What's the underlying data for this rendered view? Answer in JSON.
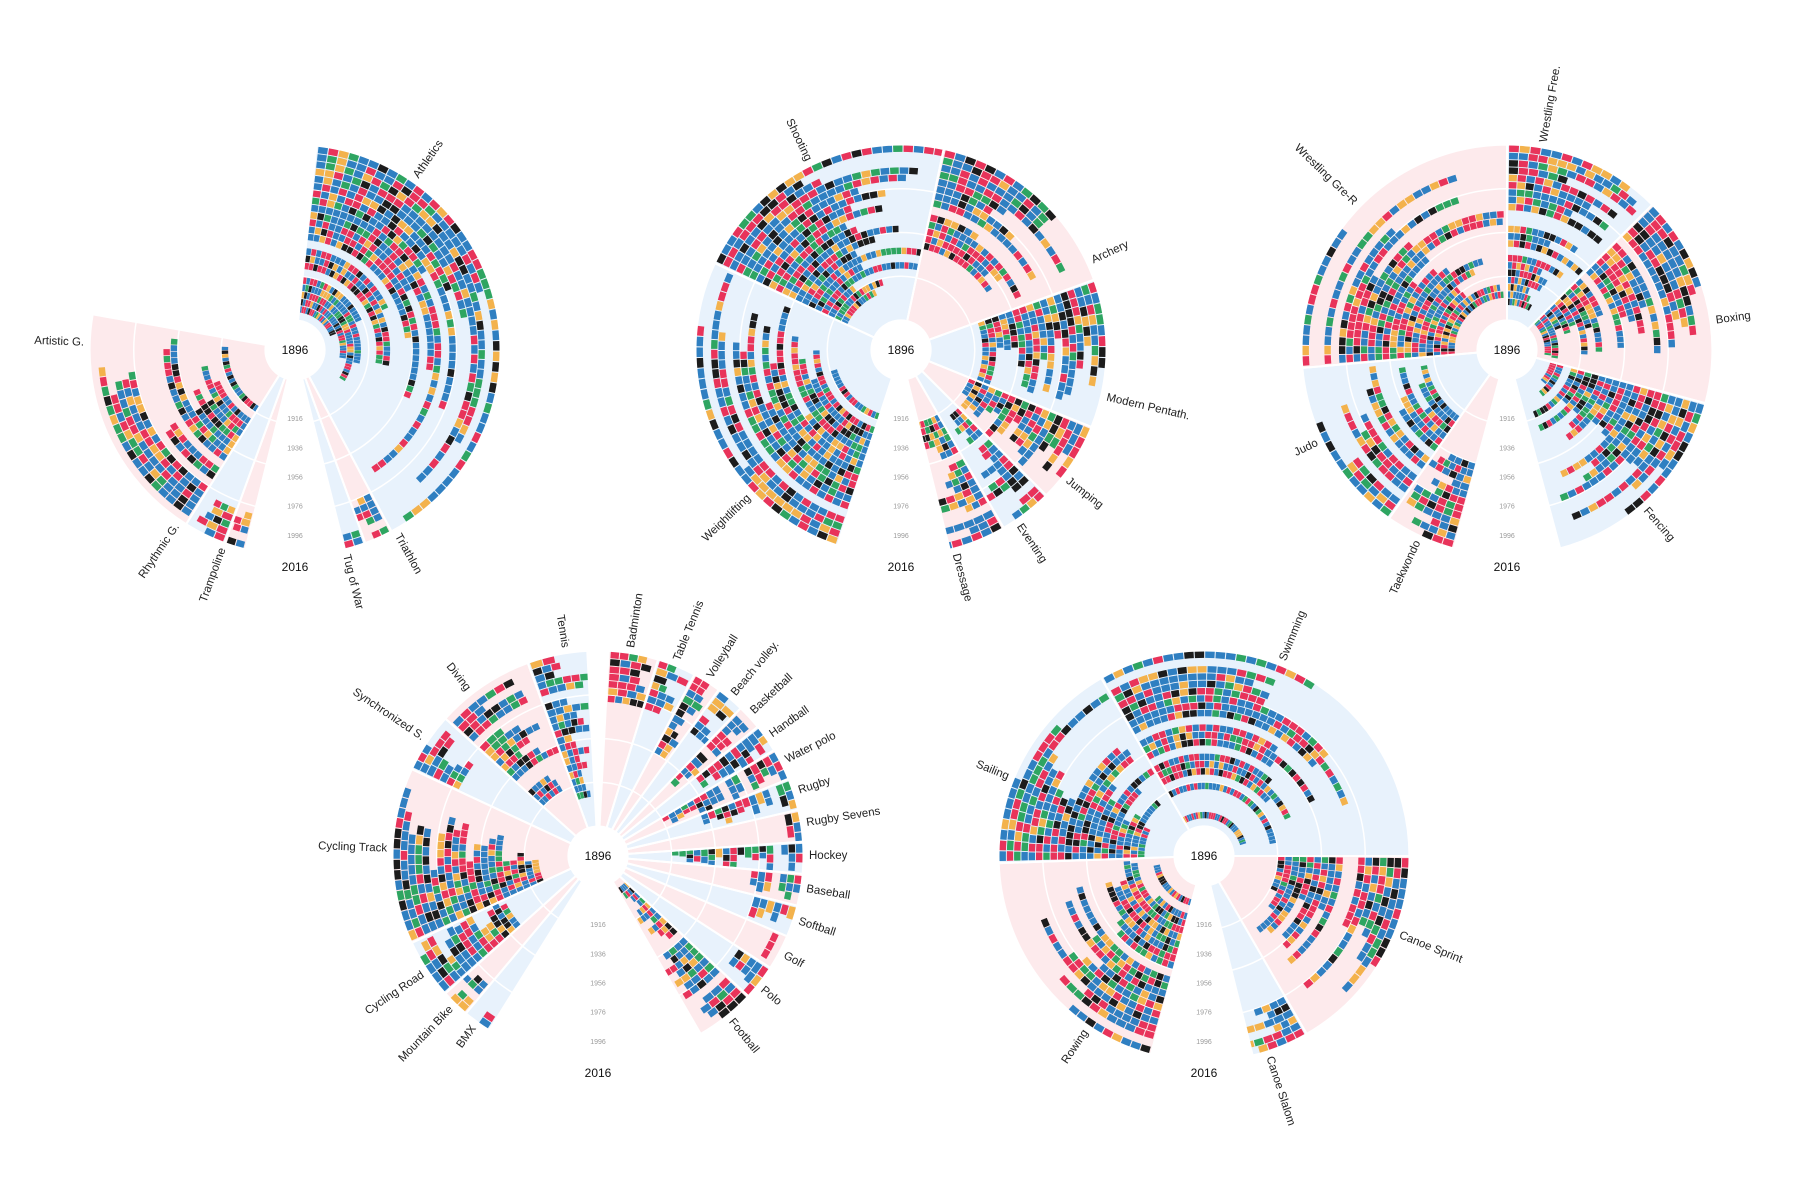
{
  "chart_data": {
    "type": "radial-bar",
    "colors": {
      "blue": "#2f7fc1",
      "red": "#e8335a",
      "gold": "#f3b24c",
      "green": "#2ea561",
      "black": "#1c1c1c",
      "background_even": "#e8f2fc",
      "background_odd": "#fdeaec"
    },
    "year_axis": {
      "start_label": "1896",
      "end_label": "2016",
      "ring_labels": [
        "1916",
        "1936",
        "1956",
        "1976",
        "1996"
      ]
    },
    "charts": [
      {
        "start_label": "1896",
        "end_label": "2016",
        "ring_labels": [
          "1916",
          "1936",
          "1956",
          "1976",
          "1996"
        ],
        "sports": [
          {
            "name": "Athletics",
            "angle_start": 6,
            "angle_end": 152,
            "label_angle": 35,
            "fill": 0.95
          },
          {
            "name": "Triathlon",
            "angle_start": 152,
            "angle_end": 160,
            "label_angle": 151,
            "fill": 0.25
          },
          {
            "name": "Tug of War",
            "angle_start": 160,
            "angle_end": 166,
            "label_angle": 166,
            "fill": 0.1
          },
          {
            "name": "Trampoline",
            "angle_start": 194,
            "angle_end": 200,
            "label_angle": 200,
            "fill": 0.2
          },
          {
            "name": "Rhythmic G.",
            "angle_start": 200,
            "angle_end": 212,
            "label_angle": 214,
            "fill": 0.25
          },
          {
            "name": "Artistic G.",
            "angle_start": 212,
            "angle_end": 280,
            "label_angle": 272,
            "fill": 0.8
          }
        ]
      },
      {
        "start_label": "1896",
        "end_label": "2016",
        "ring_labels": [
          "1916",
          "1936",
          "1956",
          "1976",
          "1996"
        ],
        "sports": [
          {
            "name": "Shooting",
            "angle_start": 295,
            "angle_end": 12,
            "label_angle": 334,
            "fill": 0.85
          },
          {
            "name": "Archery",
            "angle_start": 12,
            "angle_end": 70,
            "label_angle": 65,
            "fill": 0.6
          },
          {
            "name": "Modern Pentath.",
            "angle_start": 70,
            "angle_end": 112,
            "label_angle": 103,
            "fill": 0.7
          },
          {
            "name": "Jumping",
            "angle_start": 112,
            "angle_end": 135,
            "label_angle": 128,
            "fill": 0.75
          },
          {
            "name": "Eventing",
            "angle_start": 135,
            "angle_end": 150,
            "label_angle": 146,
            "fill": 0.75
          },
          {
            "name": "Dressage",
            "angle_start": 150,
            "angle_end": 168,
            "label_angle": 165,
            "fill": 0.75
          },
          {
            "name": "Weightlifting",
            "angle_start": 198,
            "angle_end": 295,
            "label_angle": 226,
            "fill": 0.8
          }
        ]
      },
      {
        "start_label": "1896",
        "end_label": "2016",
        "ring_labels": [
          "1916",
          "1936",
          "1956",
          "1976",
          "1996"
        ],
        "sports": [
          {
            "name": "Wrestling Free.",
            "angle_start": 0,
            "angle_end": 45,
            "label_angle": 10,
            "fill": 0.9
          },
          {
            "name": "Boxing",
            "angle_start": 45,
            "angle_end": 105,
            "label_angle": 82,
            "fill": 0.95
          },
          {
            "name": "Fencing",
            "angle_start": 105,
            "angle_end": 165,
            "label_angle": 139,
            "fill": 0.9
          },
          {
            "name": "Taekwondo",
            "angle_start": 195,
            "angle_end": 215,
            "label_angle": 205,
            "fill": 0.5
          },
          {
            "name": "Judo",
            "angle_start": 215,
            "angle_end": 265,
            "label_angle": 244,
            "fill": 0.7
          },
          {
            "name": "Wrestling Gre-R",
            "angle_start": 265,
            "angle_end": 360,
            "label_angle": 314,
            "fill": 0.9
          }
        ]
      },
      {
        "start_label": "1896",
        "end_label": "2016",
        "ring_labels": [
          "1916",
          "1936",
          "1956",
          "1976",
          "1996"
        ],
        "sports": [
          {
            "name": "Tennis",
            "angle_start": 340,
            "angle_end": 357,
            "label_angle": 351,
            "fill": 0.85
          },
          {
            "name": "Badminton",
            "angle_start": 3,
            "angle_end": 17,
            "label_angle": 9,
            "fill": 0.3
          },
          {
            "name": "Table Tennis",
            "angle_start": 17,
            "angle_end": 28,
            "label_angle": 22,
            "fill": 0.3
          },
          {
            "name": "Volleyball",
            "angle_start": 28,
            "angle_end": 36,
            "label_angle": 32,
            "fill": 0.5
          },
          {
            "name": "Beach volley.",
            "angle_start": 36,
            "angle_end": 44,
            "label_angle": 40,
            "fill": 0.3
          },
          {
            "name": "Basketball",
            "angle_start": 44,
            "angle_end": 51,
            "label_angle": 47,
            "fill": 0.6
          },
          {
            "name": "Handball",
            "angle_start": 51,
            "angle_end": 59,
            "label_angle": 55,
            "fill": 0.5
          },
          {
            "name": "Water polo",
            "angle_start": 59,
            "angle_end": 68,
            "label_angle": 63,
            "fill": 0.75
          },
          {
            "name": "Rugby",
            "angle_start": 68,
            "angle_end": 77,
            "label_angle": 72,
            "fill": 0.55
          },
          {
            "name": "Rugby Sevens",
            "angle_start": 77,
            "angle_end": 86,
            "label_angle": 81,
            "fill": 0.1
          },
          {
            "name": "Hockey",
            "angle_start": 86,
            "angle_end": 95,
            "label_angle": 90,
            "fill": 0.75
          },
          {
            "name": "Baseball",
            "angle_start": 95,
            "angle_end": 104,
            "label_angle": 99,
            "fill": 0.3
          },
          {
            "name": "Softball",
            "angle_start": 104,
            "angle_end": 113,
            "label_angle": 108,
            "fill": 0.25
          },
          {
            "name": "Golf",
            "angle_start": 113,
            "angle_end": 123,
            "label_angle": 118,
            "fill": 0.15
          },
          {
            "name": "Polo",
            "angle_start": 123,
            "angle_end": 133,
            "label_angle": 129,
            "fill": 0.2
          },
          {
            "name": "Football",
            "angle_start": 133,
            "angle_end": 150,
            "label_angle": 141,
            "fill": 0.95
          },
          {
            "name": "BMX",
            "angle_start": 212,
            "angle_end": 220,
            "label_angle": 216,
            "fill": 0.1
          },
          {
            "name": "Mountain Bike",
            "angle_start": 220,
            "angle_end": 228,
            "label_angle": 224,
            "fill": 0.2
          },
          {
            "name": "Cycling Road",
            "angle_start": 228,
            "angle_end": 245,
            "label_angle": 236,
            "fill": 0.6
          },
          {
            "name": "Cycling Track",
            "angle_start": 245,
            "angle_end": 295,
            "label_angle": 272,
            "fill": 0.85
          },
          {
            "name": "Synchronized S.",
            "angle_start": 295,
            "angle_end": 312,
            "label_angle": 304,
            "fill": 0.3
          },
          {
            "name": "Diving",
            "angle_start": 312,
            "angle_end": 340,
            "label_angle": 322,
            "fill": 0.8
          }
        ]
      },
      {
        "start_label": "1896",
        "end_label": "2016",
        "ring_labels": [
          "1916",
          "1936",
          "1956",
          "1976",
          "1996"
        ],
        "sports": [
          {
            "name": "Swimming",
            "angle_start": 330,
            "angle_end": 90,
            "label_angle": 22,
            "fill": 0.95
          },
          {
            "name": "Canoe Sprint",
            "angle_start": 90,
            "angle_end": 150,
            "label_angle": 112,
            "fill": 0.75
          },
          {
            "name": "Canoe Slalom",
            "angle_start": 150,
            "angle_end": 168,
            "label_angle": 162,
            "fill": 0.25
          },
          {
            "name": "Rowing",
            "angle_start": 195,
            "angle_end": 268,
            "label_angle": 214,
            "fill": 0.9
          },
          {
            "name": "Sailing",
            "angle_start": 268,
            "angle_end": 330,
            "label_angle": 292,
            "fill": 0.85
          }
        ]
      }
    ]
  }
}
